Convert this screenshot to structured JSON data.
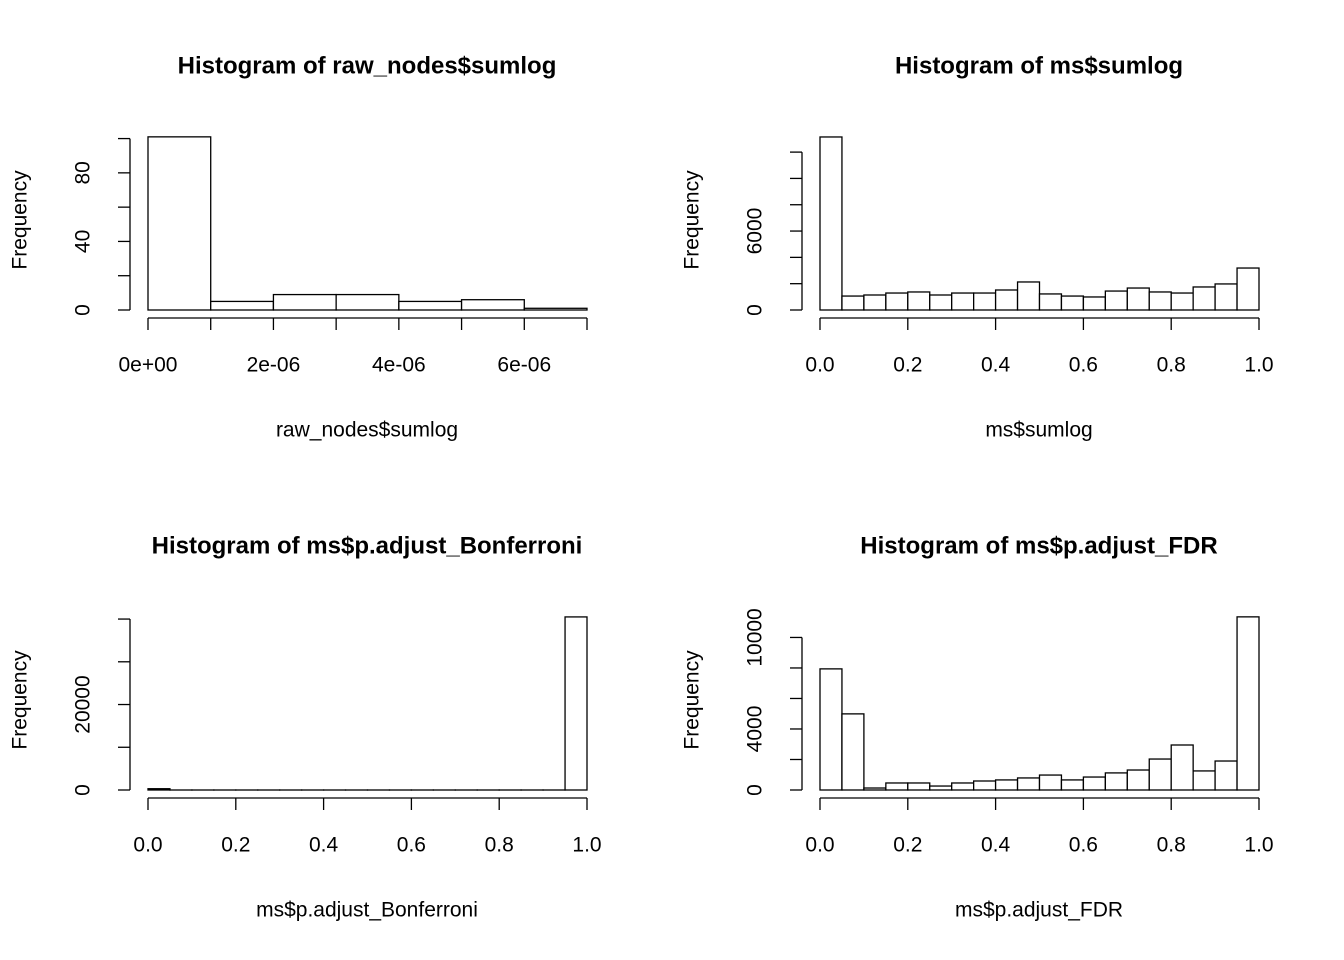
{
  "chart_data": [
    {
      "type": "histogram",
      "title": "Histogram of raw_nodes$sumlog",
      "xlabel": "raw_nodes$sumlog",
      "ylabel": "Frequency",
      "bins": [
        0,
        1e-06,
        2e-06,
        3e-06,
        4e-06,
        5e-06,
        6e-06,
        7e-06
      ],
      "values": [
        101,
        5,
        9,
        9,
        5,
        6,
        1
      ],
      "xlim": [
        0,
        7e-06
      ],
      "xticks": [
        {
          "value": 0,
          "label": "0e+00"
        },
        {
          "value": 2e-06,
          "label": "2e-06"
        },
        {
          "value": 4e-06,
          "label": "4e-06"
        },
        {
          "value": 6e-06,
          "label": "6e-06"
        }
      ],
      "xminorticks": [
        1e-06,
        3e-06,
        5e-06,
        7e-06
      ],
      "ylim": [
        0,
        105
      ],
      "yticks": [
        0,
        40,
        80
      ],
      "yminorticks": [
        20,
        60,
        100
      ],
      "color": "#ffffff",
      "edgecolor": "#000000"
    },
    {
      "type": "histogram",
      "title": "Histogram of ms$sumlog",
      "xlabel": "ms$sumlog",
      "ylabel": "Frequency",
      "bins": [
        0,
        0.05,
        0.1,
        0.15,
        0.2,
        0.25,
        0.3,
        0.35,
        0.4,
        0.45,
        0.5,
        0.55,
        0.6,
        0.65,
        0.7,
        0.75,
        0.8,
        0.85,
        0.9,
        0.95,
        1
      ],
      "values": [
        13150,
        1060,
        1140,
        1290,
        1370,
        1140,
        1290,
        1290,
        1520,
        2130,
        1220,
        1060,
        990,
        1440,
        1670,
        1370,
        1290,
        1750,
        1980,
        3190
      ],
      "xlim": [
        0,
        1
      ],
      "xticks": [
        {
          "value": 0,
          "label": "0.0"
        },
        0.2,
        0.4,
        0.6,
        0.8,
        {
          "value": 1,
          "label": "1.0"
        }
      ],
      "ylim": [
        0,
        13680
      ],
      "yticks": [
        0,
        6000
      ],
      "yminorticks": [
        2000,
        4000,
        8000,
        10000,
        12000
      ],
      "color": "#ffffff",
      "edgecolor": "#000000"
    },
    {
      "type": "histogram",
      "title": "Histogram of ms$p.adjust_Bonferroni",
      "xlabel": "ms$p.adjust_Bonferroni",
      "ylabel": "Frequency",
      "bins": [
        0,
        0.05,
        0.1,
        0.15,
        0.2,
        0.25,
        0.3,
        0.35,
        0.4,
        0.45,
        0.5,
        0.55,
        0.6,
        0.65,
        0.7,
        0.75,
        0.8,
        0.85,
        0.9,
        0.95,
        1
      ],
      "values": [
        300,
        0,
        0,
        0,
        0,
        0,
        0,
        0,
        0,
        0,
        0,
        0,
        0,
        0,
        0,
        0,
        0,
        0,
        0,
        40500
      ],
      "xlim": [
        0,
        1
      ],
      "xticks": [
        {
          "value": 0,
          "label": "0.0"
        },
        0.2,
        0.4,
        0.6,
        0.8,
        {
          "value": 1,
          "label": "1.0"
        }
      ],
      "ylim": [
        0,
        42120
      ],
      "yticks": [
        0,
        20000
      ],
      "yminorticks": [
        10000,
        30000,
        40000
      ],
      "color": "#ffffff",
      "edgecolor": "#000000"
    },
    {
      "type": "histogram",
      "title": "Histogram of ms$p.adjust_FDR",
      "xlabel": "ms$p.adjust_FDR",
      "ylabel": "Frequency",
      "bins": [
        0,
        0.05,
        0.1,
        0.15,
        0.2,
        0.25,
        0.3,
        0.35,
        0.4,
        0.45,
        0.5,
        0.55,
        0.6,
        0.65,
        0.7,
        0.75,
        0.8,
        0.85,
        0.9,
        0.95,
        1
      ],
      "values": [
        7940,
        4990,
        130,
        460,
        460,
        260,
        460,
        590,
        660,
        790,
        980,
        660,
        850,
        1120,
        1310,
        2030,
        2950,
        1250,
        1900,
        11350
      ],
      "xlim": [
        0,
        1
      ],
      "xticks": [
        {
          "value": 0,
          "label": "0.0"
        },
        0.2,
        0.4,
        0.6,
        0.8,
        {
          "value": 1,
          "label": "1.0"
        }
      ],
      "ylim": [
        0,
        11800
      ],
      "yticks": [
        0,
        4000,
        10000
      ],
      "yminorticks": [
        2000,
        6000,
        8000
      ],
      "color": "#ffffff",
      "edgecolor": "#000000"
    }
  ]
}
